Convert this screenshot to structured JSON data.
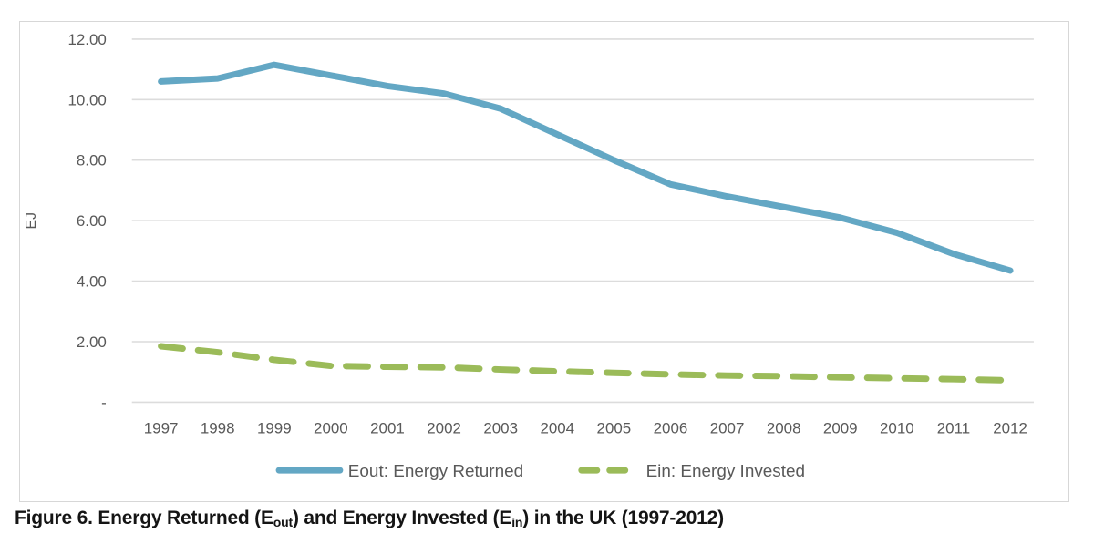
{
  "colors": {
    "eout_line": "#63A7C4",
    "ein_line": "#9BBB59",
    "gridline": "#DCDCDC",
    "frame": "#D7D7D7",
    "axis_text": "#595959",
    "caption_text": "#141414"
  },
  "chart": {
    "y_axis": {
      "title": "EJ",
      "tick_labels": [
        "12.00",
        "10.00",
        "8.00",
        "6.00",
        "4.00",
        "2.00",
        "-"
      ],
      "tick_values": [
        12,
        10,
        8,
        6,
        4,
        2,
        0
      ]
    }
  },
  "chart_data": {
    "type": "line",
    "x": [
      "1997",
      "1998",
      "1999",
      "2000",
      "2001",
      "2002",
      "2003",
      "2004",
      "2005",
      "2006",
      "2007",
      "2008",
      "2009",
      "2010",
      "2011",
      "2012"
    ],
    "series": [
      {
        "name": "Eout: Energy Returned",
        "style": "solid",
        "color": "#63A7C4",
        "values": [
          10.6,
          10.7,
          11.15,
          10.8,
          10.45,
          10.2,
          9.7,
          8.85,
          8.0,
          7.2,
          6.8,
          6.45,
          6.1,
          5.6,
          4.9,
          4.35
        ]
      },
      {
        "name": "Ein: Energy Invested",
        "style": "dashed",
        "color": "#9BBB59",
        "values": [
          1.85,
          1.65,
          1.4,
          1.2,
          1.17,
          1.15,
          1.08,
          1.02,
          0.97,
          0.92,
          0.88,
          0.86,
          0.82,
          0.79,
          0.76,
          0.72
        ]
      }
    ],
    "title": "",
    "xlabel": "",
    "ylabel": "EJ",
    "ylim": [
      0,
      12
    ],
    "grid": true,
    "legend_position": "bottom"
  },
  "caption": {
    "p1": "Figure 6. Energy Returned (E",
    "sub1": "out",
    "p2": ") and Energy Invested (E",
    "sub2": "in",
    "p3": ") in the UK (1997-2012)"
  }
}
